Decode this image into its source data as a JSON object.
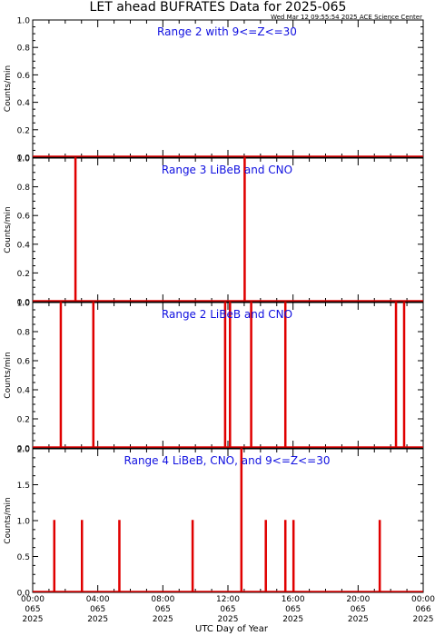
{
  "title": "LET ahead BUFRATES Data for 2025-065",
  "timestamp": "Wed Mar 12 09:55:54 2025 ACE Science Center",
  "colors": {
    "trace": "#e00000",
    "panel_title": "#1010e0",
    "axis": "#000000"
  },
  "x_axis": {
    "label": "UTC Day of Year",
    "ticks": [
      {
        "hour": 0,
        "time": "00:00",
        "doy": "065",
        "year": "2025"
      },
      {
        "hour": 4,
        "time": "04:00",
        "doy": "065",
        "year": "2025"
      },
      {
        "hour": 8,
        "time": "08:00",
        "doy": "065",
        "year": "2025"
      },
      {
        "hour": 12,
        "time": "12:00",
        "doy": "065",
        "year": "2025"
      },
      {
        "hour": 16,
        "time": "16:00",
        "doy": "065",
        "year": "2025"
      },
      {
        "hour": 20,
        "time": "20:00",
        "doy": "065",
        "year": "2025"
      },
      {
        "hour": 24,
        "time": "00:00",
        "doy": "066",
        "year": "2025"
      }
    ]
  },
  "chart_data": [
    {
      "type": "line",
      "title": "Range 2 with 9<=Z<=30",
      "ylabel": "Counts/min",
      "xlim": [
        0,
        24
      ],
      "ylim": [
        0,
        1.0
      ],
      "yticks": [
        "0.0",
        "0.2",
        "0.4",
        "0.6",
        "0.8",
        "1.0"
      ],
      "spikes": []
    },
    {
      "type": "line",
      "title": "Range 3 LiBeB and CNO",
      "ylabel": "Counts/min",
      "xlim": [
        0,
        24
      ],
      "ylim": [
        0,
        1.0
      ],
      "yticks": [
        "0.0",
        "0.2",
        "0.4",
        "0.6",
        "0.8",
        "1.0"
      ],
      "spikes": [
        {
          "hour": 2.6,
          "value": 1.0
        },
        {
          "hour": 13.0,
          "value": 1.0
        }
      ]
    },
    {
      "type": "line",
      "title": "Range 2 LiBeB and CNO",
      "ylabel": "Counts/min",
      "xlim": [
        0,
        24
      ],
      "ylim": [
        0,
        1.0
      ],
      "yticks": [
        "0.0",
        "0.2",
        "0.4",
        "0.6",
        "0.8",
        "1.0"
      ],
      "spikes": [
        {
          "hour": 1.7,
          "value": 1.0
        },
        {
          "hour": 3.7,
          "value": 1.0
        },
        {
          "hour": 11.8,
          "value": 1.0
        },
        {
          "hour": 12.1,
          "value": 1.0
        },
        {
          "hour": 13.4,
          "value": 1.0
        },
        {
          "hour": 15.5,
          "value": 1.0
        },
        {
          "hour": 22.3,
          "value": 1.0
        },
        {
          "hour": 22.8,
          "value": 1.0
        }
      ]
    },
    {
      "type": "line",
      "title": "Range 4 LiBeB, CNO, and 9<=Z<=30",
      "ylabel": "Counts/min",
      "xlim": [
        0,
        24
      ],
      "ylim": [
        0,
        2.0
      ],
      "yticks": [
        "0.0",
        "0.5",
        "1.0",
        "1.5",
        "2.0"
      ],
      "spikes": [
        {
          "hour": 1.3,
          "value": 1.0
        },
        {
          "hour": 3.0,
          "value": 1.0
        },
        {
          "hour": 5.3,
          "value": 1.0
        },
        {
          "hour": 9.8,
          "value": 1.0
        },
        {
          "hour": 12.8,
          "value": 2.0
        },
        {
          "hour": 14.3,
          "value": 1.0
        },
        {
          "hour": 15.5,
          "value": 1.0
        },
        {
          "hour": 16.0,
          "value": 1.0
        },
        {
          "hour": 21.3,
          "value": 1.0
        }
      ]
    }
  ]
}
